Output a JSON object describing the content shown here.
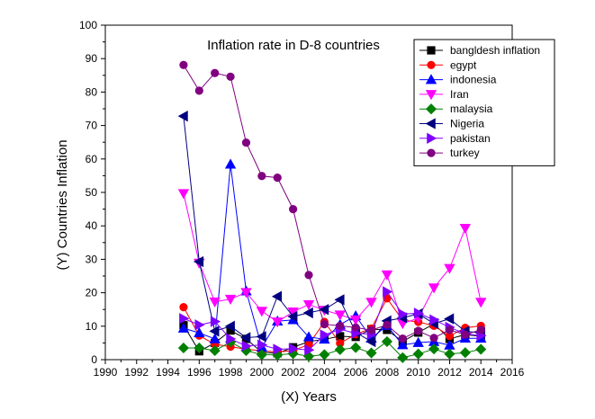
{
  "chart_data": {
    "type": "line",
    "title": "Inflation rate in D-8 countries",
    "xlabel": "(X) Years",
    "ylabel": "(Y) Countries Inflation",
    "xlim": [
      1990,
      2016
    ],
    "ylim": [
      0,
      100
    ],
    "xticks": [
      1990,
      1992,
      1994,
      1996,
      1998,
      2000,
      2002,
      2004,
      2006,
      2008,
      2010,
      2012,
      2014,
      2016
    ],
    "yticks": [
      0,
      10,
      20,
      30,
      40,
      50,
      60,
      70,
      80,
      90,
      100
    ],
    "legend_position": "top-right",
    "x": [
      1995,
      1996,
      1997,
      1998,
      1999,
      2000,
      2001,
      2002,
      2003,
      2004,
      2005,
      2006,
      2007,
      2008,
      2009,
      2010,
      2011,
      2012,
      2013,
      2014
    ],
    "series": [
      {
        "name": "bangldesh inflation",
        "color": "#000000",
        "marker": "square",
        "values": [
          10.3,
          2.5,
          5.0,
          8.7,
          6.2,
          2.2,
          1.9,
          3.7,
          5.4,
          6.1,
          7.0,
          6.8,
          9.1,
          8.9,
          5.4,
          8.1,
          10.7,
          6.2,
          7.5,
          7.0
        ]
      },
      {
        "name": "egypt",
        "color": "#ff0000",
        "marker": "circle",
        "values": [
          15.7,
          7.2,
          4.6,
          3.9,
          3.1,
          2.7,
          2.3,
          2.7,
          4.5,
          11.3,
          4.9,
          7.6,
          9.3,
          18.3,
          11.8,
          11.3,
          10.1,
          7.1,
          9.5,
          10.1
        ]
      },
      {
        "name": "indonesia",
        "color": "#0000ff",
        "marker": "triangle-up",
        "values": [
          9.4,
          8.0,
          6.2,
          58.4,
          20.5,
          3.7,
          11.5,
          11.9,
          6.8,
          6.1,
          10.5,
          13.1,
          6.4,
          10.2,
          4.4,
          5.1,
          5.4,
          4.3,
          6.4,
          6.4
        ]
      },
      {
        "name": "Iran",
        "color": "#ff00ff",
        "marker": "triangle-down",
        "values": [
          49.7,
          28.9,
          17.3,
          18.1,
          20.1,
          14.5,
          11.3,
          14.3,
          16.5,
          14.8,
          13.4,
          11.9,
          17.2,
          25.4,
          10.8,
          12.4,
          21.5,
          27.3,
          39.3,
          17.2
        ]
      },
      {
        "name": "malaysia",
        "color": "#008000",
        "marker": "diamond",
        "values": [
          3.5,
          3.5,
          2.7,
          5.3,
          2.7,
          1.5,
          1.4,
          1.8,
          1.0,
          1.5,
          3.0,
          3.6,
          2.0,
          5.4,
          0.6,
          1.7,
          3.2,
          1.7,
          2.1,
          3.1
        ]
      },
      {
        "name": "Nigeria",
        "color": "#000080",
        "marker": "triangle-left",
        "values": [
          72.8,
          29.3,
          8.5,
          10.0,
          6.6,
          6.9,
          18.9,
          12.9,
          14.0,
          15.0,
          17.9,
          8.2,
          5.4,
          11.6,
          12.5,
          13.7,
          10.8,
          12.2,
          8.5,
          8.0
        ]
      },
      {
        "name": "pakistan",
        "color": "#8000ff",
        "marker": "triangle-right",
        "values": [
          12.3,
          10.4,
          11.4,
          6.2,
          4.1,
          4.4,
          3.1,
          3.3,
          2.9,
          7.4,
          9.1,
          7.9,
          7.6,
          20.3,
          13.6,
          13.9,
          11.9,
          9.7,
          7.7,
          7.2
        ]
      },
      {
        "name": "turkey",
        "color": "#800080",
        "marker": "circle",
        "values": [
          88.1,
          80.4,
          85.7,
          84.6,
          64.9,
          54.9,
          54.4,
          45.0,
          25.3,
          10.6,
          10.1,
          9.6,
          8.8,
          10.4,
          6.3,
          8.6,
          6.5,
          8.9,
          7.5,
          8.9
        ]
      }
    ]
  }
}
